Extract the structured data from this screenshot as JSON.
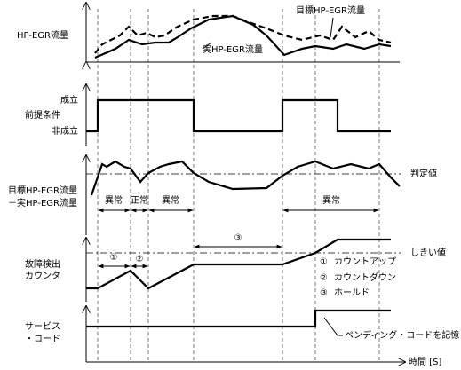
{
  "panels": {
    "flow": {
      "label": "HP-EGR流量",
      "target_label": "目標HP-EGR流量",
      "actual_label": "実HP-EGR流量"
    },
    "condition": {
      "label": "前提条件",
      "on": "成立",
      "off": "非成立"
    },
    "difference": {
      "label_line1": "目標HP-EGR流量",
      "label_line2": "－実HP-EGR流量",
      "threshold": "判定値",
      "segments": [
        "異常",
        "正常",
        "異常",
        "異常"
      ]
    },
    "counter": {
      "label_line1": "故障検出",
      "label_line2": "カウンタ",
      "threshold": "しきい値",
      "markers": [
        "①",
        "②",
        "③"
      ],
      "legend": [
        {
          "mark": "①",
          "text": "カウントアップ"
        },
        {
          "mark": "②",
          "text": "カウントダウン"
        },
        {
          "mark": "③",
          "text": "ホールド"
        }
      ]
    },
    "service_code": {
      "label_line1": "サービス",
      "label_line2": "・コード",
      "note": "ペンディング・コードを記憶"
    }
  },
  "time_axis": "時間 [S]"
}
